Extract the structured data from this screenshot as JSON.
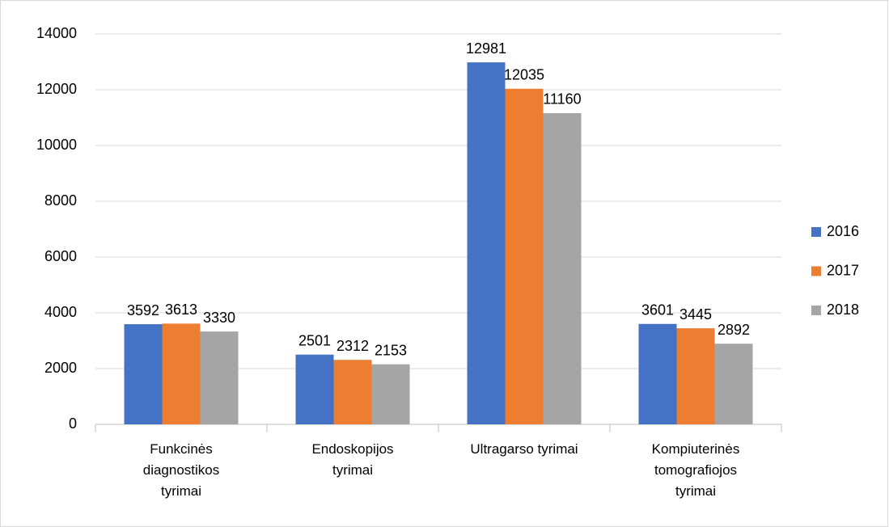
{
  "chart_data": {
    "type": "bar",
    "categories": [
      "Funkcinės diagnostikos tyrimai",
      "Endoskopijos tyrimai",
      "Ultragarso tyrimai",
      "Kompiuterinės tomografiojos tyrimai"
    ],
    "series": [
      {
        "name": "2016",
        "color": "#4472c4",
        "values": [
          3592,
          2501,
          12981,
          3601
        ]
      },
      {
        "name": "2017",
        "color": "#ed7d31",
        "values": [
          3613,
          2312,
          12035,
          3445
        ]
      },
      {
        "name": "2018",
        "color": "#a5a5a5",
        "values": [
          3330,
          2153,
          11160,
          2892
        ]
      }
    ],
    "ylim": [
      0,
      14000
    ],
    "yticks": [
      0,
      2000,
      4000,
      6000,
      8000,
      10000,
      12000,
      14000
    ],
    "grid": true,
    "legend": "right"
  }
}
